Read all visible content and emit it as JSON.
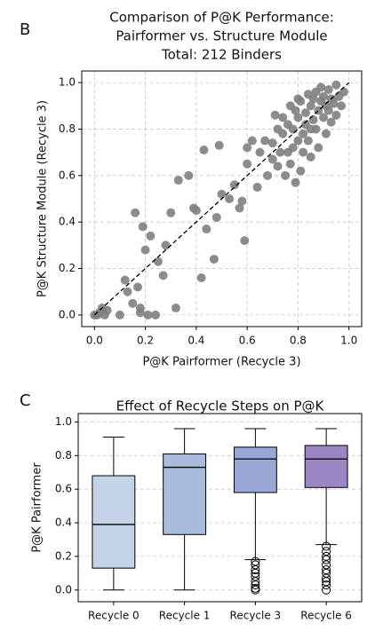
{
  "chart_data": [
    {
      "type": "scatter",
      "panel_label": "B",
      "title": [
        "Comparison of P@K Performance:",
        "Pairformer vs. Structure Module",
        "Total: 212 Binders"
      ],
      "x_label": "P@K Pairformer (Recycle 3)",
      "y_label": "P@K Structure Module (Recycle 3)",
      "color": "#808080",
      "grid": true,
      "xlim": [
        -0.05,
        1.05
      ],
      "ylim": [
        -0.05,
        1.05
      ],
      "xticks": [
        {
          "value": 0,
          "label": "0.0"
        },
        0.2,
        0.4,
        0.6,
        0.8,
        {
          "value": 1,
          "label": "1.0"
        }
      ],
      "yticks": [
        {
          "value": 0,
          "label": "0.0"
        },
        0.2,
        0.4,
        0.6,
        0.8,
        {
          "value": 1,
          "label": "1.0"
        }
      ],
      "diagonal": {
        "x": [
          0,
          1
        ],
        "y": [
          0,
          1
        ]
      },
      "x": [
        0,
        0.01,
        0.02,
        0.03,
        0.04,
        0.05,
        0.1,
        0.12,
        0.13,
        0.15,
        0.16,
        0.17,
        0.18,
        0.18,
        0.19,
        0.2,
        0.21,
        0.22,
        0.24,
        0.25,
        0.27,
        0.28,
        0.3,
        0.32,
        0.33,
        0.37,
        0.39,
        0.4,
        0.42,
        0.43,
        0.44,
        0.47,
        0.48,
        0.49,
        0.5,
        0.53,
        0.55,
        0.57,
        0.58,
        0.59,
        0.6,
        0.6,
        0.62,
        0.64,
        0.65,
        0.67,
        0.68,
        0.7,
        0.7,
        0.71,
        0.72,
        0.73,
        0.74,
        0.75,
        0.76,
        0.76,
        0.77,
        0.78,
        0.78,
        0.79,
        0.79,
        0.8,
        0.8,
        0.81,
        0.81,
        0.82,
        0.82,
        0.83,
        0.83,
        0.84,
        0.84,
        0.85,
        0.85,
        0.86,
        0.86,
        0.87,
        0.87,
        0.88,
        0.88,
        0.89,
        0.89,
        0.9,
        0.9,
        0.91,
        0.91,
        0.92,
        0.92,
        0.93,
        0.93,
        0.94,
        0.95,
        0.95,
        0.96,
        0.97,
        0.98,
        0.8,
        0.77,
        0.74,
        0.72,
        0.85
      ],
      "values": [
        0,
        0,
        0.01,
        0.03,
        0,
        0.02,
        0,
        0.15,
        0.1,
        0.05,
        0.44,
        0.12,
        0.01,
        0.03,
        0.38,
        0.28,
        0,
        0.34,
        0,
        0.23,
        0.17,
        0.3,
        0.44,
        0.03,
        0.58,
        0.6,
        0.46,
        0.45,
        0.16,
        0.71,
        0.37,
        0.24,
        0.42,
        0.73,
        0.52,
        0.5,
        0.56,
        0.46,
        0.49,
        0.32,
        0.65,
        0.72,
        0.75,
        0.55,
        0.7,
        0.75,
        0.6,
        0.74,
        0.67,
        0.86,
        0.64,
        0.7,
        0.78,
        0.6,
        0.82,
        0.7,
        0.65,
        0.8,
        0.72,
        0.57,
        0.88,
        0.85,
        0.75,
        0.62,
        0.92,
        0.78,
        0.7,
        0.87,
        0.82,
        0.95,
        0.75,
        0.9,
        0.68,
        0.84,
        0.93,
        0.8,
        0.96,
        0.88,
        0.72,
        0.92,
        0.98,
        0.85,
        0.94,
        0.78,
        0.9,
        0.97,
        0.88,
        0.93,
        0.83,
        0.91,
        0.99,
        0.86,
        0.94,
        0.9,
        0.96,
        0.93,
        0.9,
        0.85,
        0.8,
        0.8
      ]
    },
    {
      "type": "box",
      "panel_label": "C",
      "title": [
        "Effect of Recycle Steps on P@K"
      ],
      "y_label": "P@K Pairformer",
      "grid": true,
      "ylim": [
        -0.07,
        1.05
      ],
      "yticks": [
        {
          "value": 0,
          "label": "0.0"
        },
        0.2,
        0.4,
        0.6,
        0.8,
        {
          "value": 1,
          "label": "1.0"
        }
      ],
      "categories": [
        "Recycle 0",
        "Recycle 1",
        "Recycle 3",
        "Recycle 6"
      ],
      "boxes": [
        {
          "color": "#c5d3e6",
          "whisker_low": 0,
          "q1": 0.13,
          "median": 0.39,
          "q3": 0.68,
          "whisker_high": 0.91,
          "outliers": []
        },
        {
          "color": "#a9bcdc",
          "whisker_low": 0,
          "q1": 0.33,
          "median": 0.73,
          "q3": 0.81,
          "whisker_high": 0.96,
          "outliers": []
        },
        {
          "color": "#9aa6d6",
          "whisker_low": 0.18,
          "q1": 0.58,
          "median": 0.78,
          "q3": 0.85,
          "whisker_high": 0.96,
          "outliers": [
            0.17,
            0.15,
            0.12,
            0.1,
            0.08,
            0.05,
            0.03,
            0.01,
            0
          ]
        },
        {
          "color": "#9b87c4",
          "whisker_low": 0.27,
          "q1": 0.61,
          "median": 0.78,
          "q3": 0.86,
          "whisker_high": 0.96,
          "outliers": [
            0.26,
            0.23,
            0.2,
            0.18,
            0.15,
            0.12,
            0.1,
            0.07,
            0.05,
            0.03,
            0
          ]
        }
      ]
    }
  ]
}
